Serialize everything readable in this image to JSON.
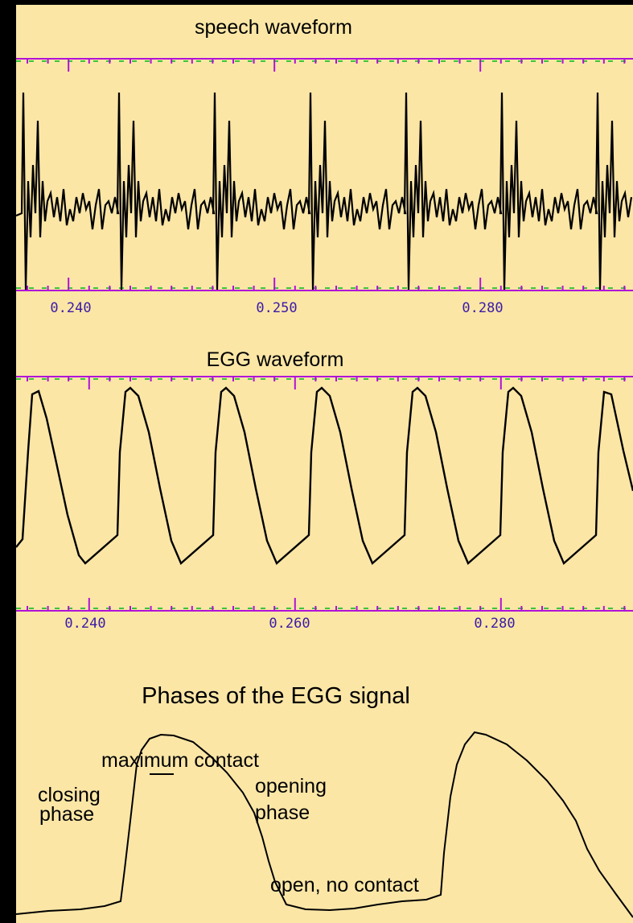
{
  "colors": {
    "background": "#fbe6a6",
    "frame": "#000000",
    "axis": "#b012d8",
    "dash": "#3cc43c",
    "tick_label": "#3a1aa8",
    "trace": "#000000"
  },
  "panels": {
    "speech": {
      "title": "speech waveform"
    },
    "egg": {
      "title": "EGG waveform"
    },
    "phases": {
      "title": "Phases of the EGG signal"
    }
  },
  "annotations": {
    "max_contact": "maximum contact",
    "closing_1": "closing",
    "closing_2": "phase",
    "opening_1": "opening",
    "opening_2": "phase",
    "open": "open, no contact"
  },
  "chart_data": [
    {
      "type": "line",
      "title": "speech waveform",
      "x_tick_labels": [
        "0.240",
        "0.250",
        "0.280"
      ],
      "grid": false,
      "description_of_series": "quasi-periodic speech pressure waveform, ~6 glottal cycles"
    },
    {
      "type": "line",
      "title": "EGG waveform",
      "x_tick_labels": [
        "0.240",
        "0.260",
        "0.280"
      ],
      "grid": false,
      "description_of_series": "electroglottograph waveform, ~6 cycles, sharp rise then slow fall"
    },
    {
      "type": "line",
      "title": "Phases of the EGG signal",
      "x_tick_labels": [],
      "grid": false,
      "description_of_series": "two schematic EGG cycles with phase annotations"
    }
  ]
}
